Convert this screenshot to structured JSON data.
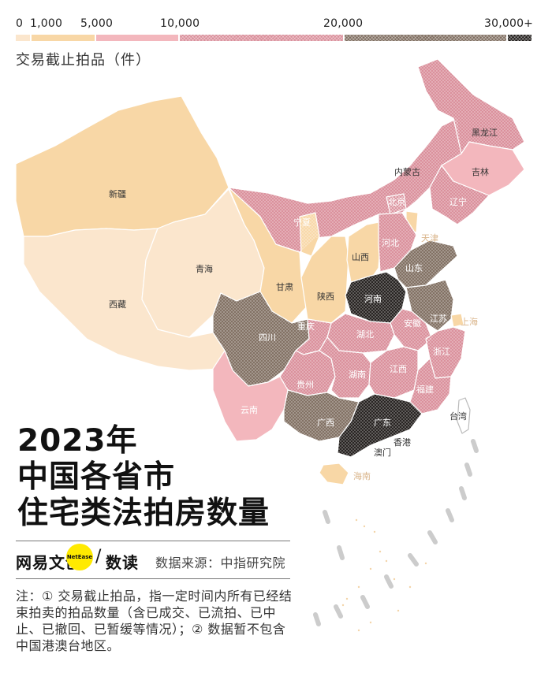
{
  "legend": {
    "ticks": [
      "0",
      "1,000",
      "5,000",
      "10,000",
      "20,000",
      "30,000+"
    ],
    "title": "交易截止拍品（件）",
    "colors": {
      "c0": "#fbe6cd",
      "c1": "#f8d7a6",
      "c2": "#f3b7bd",
      "c3": "#d98c98",
      "c4": "#7d6b5d",
      "c5": "#1e1a18"
    }
  },
  "title": {
    "line1": "2023年",
    "line2": "中国各省市",
    "line3": "住宅类法拍房数量"
  },
  "brand": {
    "name": "网易文创",
    "badge": "NetEase",
    "sub": "数读",
    "slash": "/"
  },
  "source": "数据来源：中指研究院",
  "note": "注：① 交易截止拍品，指一定时间内所有已经结束拍卖的拍品数量（含已成交、已流拍、已中止、已撤回、已暂缓等情况）；② 数据暂不包含中国港澳台地区。",
  "provinces": [
    {
      "id": "xinjiang",
      "label": "新疆",
      "bin": "c1"
    },
    {
      "id": "xizang",
      "label": "西藏",
      "bin": "c0"
    },
    {
      "id": "qinghai",
      "label": "青海",
      "bin": "c0"
    },
    {
      "id": "gansu",
      "label": "甘肃",
      "bin": "c1"
    },
    {
      "id": "neimenggu",
      "label": "内蒙古",
      "bin": "c3"
    },
    {
      "id": "ningxia",
      "label": "宁夏",
      "bin": "c1"
    },
    {
      "id": "shaanxi",
      "label": "陕西",
      "bin": "c1"
    },
    {
      "id": "shanxi",
      "label": "山西",
      "bin": "c1"
    },
    {
      "id": "heilongjiang",
      "label": "黑龙江",
      "bin": "c3"
    },
    {
      "id": "jilin",
      "label": "吉林",
      "bin": "c2"
    },
    {
      "id": "liaoning",
      "label": "辽宁",
      "bin": "c3"
    },
    {
      "id": "beijing",
      "label": "北京",
      "bin": "c3"
    },
    {
      "id": "tianjin",
      "label": "天津",
      "bin": "c1"
    },
    {
      "id": "hebei",
      "label": "河北",
      "bin": "c3"
    },
    {
      "id": "shandong",
      "label": "山东",
      "bin": "c4"
    },
    {
      "id": "henan",
      "label": "河南",
      "bin": "c5"
    },
    {
      "id": "jiangsu",
      "label": "江苏",
      "bin": "c4"
    },
    {
      "id": "shanghai",
      "label": "上海",
      "bin": "c1"
    },
    {
      "id": "anhui",
      "label": "安徽",
      "bin": "c3"
    },
    {
      "id": "zhejiang",
      "label": "浙江",
      "bin": "c3"
    },
    {
      "id": "hubei",
      "label": "湖北",
      "bin": "c3"
    },
    {
      "id": "sichuan",
      "label": "四川",
      "bin": "c4"
    },
    {
      "id": "chongqing",
      "label": "重庆",
      "bin": "c3"
    },
    {
      "id": "guizhou",
      "label": "贵州",
      "bin": "c3"
    },
    {
      "id": "hunan",
      "label": "湖南",
      "bin": "c3"
    },
    {
      "id": "jiangxi",
      "label": "江西",
      "bin": "c3"
    },
    {
      "id": "fujian",
      "label": "福建",
      "bin": "c3"
    },
    {
      "id": "yunnan",
      "label": "云南",
      "bin": "c2"
    },
    {
      "id": "guangxi",
      "label": "广西",
      "bin": "c4"
    },
    {
      "id": "guangdong",
      "label": "广东",
      "bin": "c5"
    },
    {
      "id": "hainan",
      "label": "海南",
      "bin": "c1"
    },
    {
      "id": "taiwan",
      "label": "台湾",
      "bin": "none"
    },
    {
      "id": "xianggang",
      "label": "香港",
      "bin": "none"
    },
    {
      "id": "aomen",
      "label": "澳门",
      "bin": "none"
    }
  ]
}
